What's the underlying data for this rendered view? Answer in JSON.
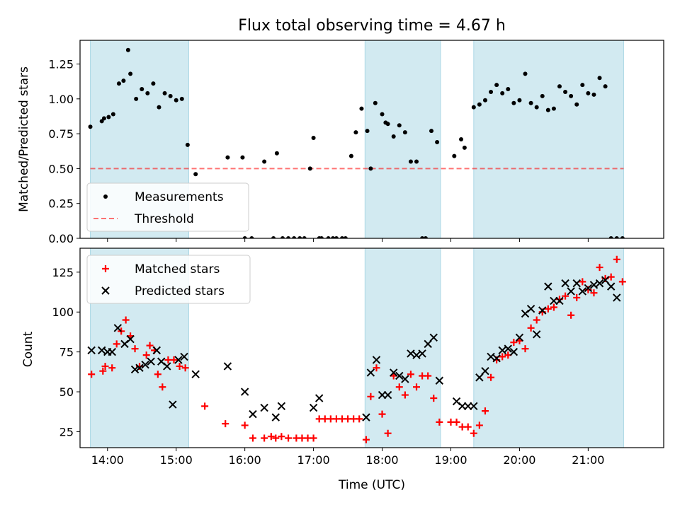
{
  "title": "Flux total observing time = 4.67 h",
  "colors": {
    "shade": "#add8e6",
    "measurement": "#000000",
    "threshold": "#ff0000",
    "matched": "#ff0000",
    "predicted": "#000000"
  },
  "chart_data": [
    {
      "type": "scatter",
      "ylabel": "Matched/Predicted stars",
      "ylim": [
        0,
        1.42
      ],
      "xlim": [
        "13:36",
        "22:06"
      ],
      "x_ticks": [
        "14:00",
        "15:00",
        "16:00",
        "17:00",
        "18:00",
        "19:00",
        "20:00",
        "21:00"
      ],
      "y_ticks": [
        "0.00",
        "0.25",
        "0.50",
        "0.75",
        "1.00",
        "1.25"
      ],
      "shaded_intervals": [
        [
          "13:45",
          "15:11"
        ],
        [
          "17:45",
          "18:51"
        ],
        [
          "19:20",
          "21:31"
        ]
      ],
      "threshold": 0.5,
      "legend": {
        "position": "lower-left",
        "entries": [
          "Measurements",
          "Threshold"
        ]
      },
      "series": [
        {
          "name": "Measurements",
          "x": [
            "13:45",
            "13:55",
            "13:57",
            "14:01",
            "14:05",
            "14:10",
            "14:14",
            "14:18",
            "14:20",
            "14:25",
            "14:30",
            "14:35",
            "14:40",
            "14:45",
            "14:50",
            "14:55",
            "15:00",
            "15:05",
            "15:10",
            "15:17",
            "15:45",
            "15:58",
            "16:00",
            "16:06",
            "16:17",
            "16:25",
            "16:28",
            "16:33",
            "16:38",
            "16:43",
            "16:48",
            "16:52",
            "16:57",
            "17:00",
            "17:05",
            "17:07",
            "17:13",
            "17:17",
            "17:20",
            "17:25",
            "17:28",
            "17:33",
            "17:37",
            "17:42",
            "17:47",
            "17:50",
            "17:54",
            "18:00",
            "18:03",
            "18:05",
            "18:10",
            "18:15",
            "18:20",
            "18:25",
            "18:30",
            "18:35",
            "18:38",
            "18:43",
            "18:48",
            "19:03",
            "19:09",
            "19:12",
            "19:20",
            "19:25",
            "19:30",
            "19:35",
            "19:40",
            "19:45",
            "19:50",
            "19:55",
            "20:00",
            "20:05",
            "20:10",
            "20:15",
            "20:20",
            "20:25",
            "20:30",
            "20:35",
            "20:40",
            "20:45",
            "20:50",
            "20:55",
            "21:00",
            "21:05",
            "21:10",
            "21:15",
            "21:20",
            "21:25",
            "21:30"
          ],
          "y": [
            0.8,
            0.84,
            0.86,
            0.87,
            0.89,
            1.11,
            1.13,
            1.35,
            1.18,
            1.0,
            1.07,
            1.04,
            1.11,
            0.94,
            1.04,
            1.02,
            0.99,
            1.0,
            0.67,
            0.46,
            0.58,
            0.58,
            0.0,
            0.0,
            0.55,
            0.0,
            0.61,
            0.0,
            0.0,
            0.0,
            0.0,
            0.0,
            0.5,
            0.72,
            0.0,
            0.0,
            0.0,
            0.0,
            0.0,
            0.0,
            0.0,
            0.59,
            0.76,
            0.93,
            0.77,
            0.5,
            0.97,
            0.89,
            0.83,
            0.82,
            0.73,
            0.81,
            0.76,
            0.55,
            0.55,
            0.0,
            0.0,
            0.77,
            0.69,
            0.59,
            0.71,
            0.65,
            0.94,
            0.96,
            0.99,
            1.05,
            1.1,
            1.04,
            1.07,
            0.97,
            0.99,
            1.18,
            0.97,
            0.94,
            1.02,
            0.92,
            0.93,
            1.09,
            1.05,
            1.02,
            0.96,
            1.1,
            1.04,
            1.03,
            1.15,
            1.09,
            0.0,
            0.0,
            0.0
          ]
        }
      ]
    },
    {
      "type": "scatter",
      "xlabel": "Time (UTC)",
      "ylabel": "Count",
      "ylim": [
        15,
        140
      ],
      "xlim": [
        "13:36",
        "22:06"
      ],
      "x_ticks": [
        "14:00",
        "15:00",
        "16:00",
        "17:00",
        "18:00",
        "19:00",
        "20:00",
        "21:00"
      ],
      "y_ticks": [
        "25",
        "50",
        "75",
        "100",
        "125"
      ],
      "shaded_intervals": [
        [
          "13:45",
          "15:11"
        ],
        [
          "17:45",
          "18:51"
        ],
        [
          "19:20",
          "21:31"
        ]
      ],
      "legend": {
        "position": "top-left",
        "entries": [
          "Matched stars",
          "Predicted stars"
        ]
      },
      "series": [
        {
          "name": "Matched stars",
          "x": [
            "13:46",
            "13:56",
            "13:58",
            "14:04",
            "14:08",
            "14:12",
            "14:16",
            "14:20",
            "14:24",
            "14:28",
            "14:34",
            "14:37",
            "14:41",
            "14:44",
            "14:48",
            "14:53",
            "14:58",
            "15:03",
            "15:08",
            "15:25",
            "15:43",
            "16:00",
            "16:07",
            "16:17",
            "16:23",
            "16:27",
            "16:32",
            "16:38",
            "16:45",
            "16:50",
            "16:55",
            "17:00",
            "17:05",
            "17:10",
            "17:15",
            "17:20",
            "17:25",
            "17:30",
            "17:35",
            "17:40",
            "17:46",
            "17:50",
            "17:55",
            "18:00",
            "18:05",
            "18:10",
            "18:15",
            "18:20",
            "18:25",
            "18:30",
            "18:35",
            "18:40",
            "18:45",
            "18:50",
            "19:00",
            "19:05",
            "19:10",
            "19:15",
            "19:20",
            "19:25",
            "19:30",
            "19:35",
            "19:40",
            "19:45",
            "19:50",
            "19:55",
            "20:00",
            "20:05",
            "20:10",
            "20:15",
            "20:20",
            "20:25",
            "20:30",
            "20:35",
            "20:40",
            "20:45",
            "20:50",
            "20:55",
            "21:00",
            "21:05",
            "21:10",
            "21:15",
            "21:20",
            "21:25",
            "21:30"
          ],
          "y": [
            61,
            63,
            66,
            65,
            80,
            88,
            95,
            85,
            77,
            66,
            73,
            79,
            76,
            61,
            53,
            70,
            70,
            66,
            65,
            41,
            30,
            29,
            21,
            21,
            22,
            21,
            22,
            21,
            21,
            21,
            21,
            21,
            33,
            33,
            33,
            33,
            33,
            33,
            33,
            33,
            20,
            47,
            65,
            36,
            24,
            60,
            53,
            48,
            61,
            53,
            60,
            60,
            46,
            31,
            31,
            31,
            28,
            28,
            24,
            29,
            38,
            59,
            70,
            72,
            73,
            81,
            82,
            77,
            90,
            95,
            100,
            102,
            103,
            108,
            110,
            98,
            109,
            119,
            114,
            112,
            128,
            121,
            122,
            133,
            119
          ]
        },
        {
          "name": "Predicted stars",
          "x": [
            "13:46",
            "13:55",
            "14:00",
            "14:04",
            "14:09",
            "14:15",
            "14:20",
            "14:24",
            "14:28",
            "14:33",
            "14:38",
            "14:43",
            "14:47",
            "14:52",
            "14:57",
            "15:02",
            "15:07",
            "15:17",
            "15:45",
            "16:00",
            "16:07",
            "16:17",
            "16:27",
            "16:32",
            "17:00",
            "17:05",
            "17:46",
            "17:50",
            "17:55",
            "18:00",
            "18:05",
            "18:10",
            "18:15",
            "18:20",
            "18:25",
            "18:30",
            "18:35",
            "18:40",
            "18:45",
            "18:50",
            "19:05",
            "19:10",
            "19:15",
            "19:20",
            "19:25",
            "19:30",
            "19:35",
            "19:40",
            "19:45",
            "19:50",
            "19:55",
            "20:00",
            "20:05",
            "20:10",
            "20:15",
            "20:20",
            "20:25",
            "20:30",
            "20:35",
            "20:40",
            "20:45",
            "20:50",
            "20:55",
            "21:00",
            "21:05",
            "21:10",
            "21:15",
            "21:20",
            "21:25"
          ],
          "y": [
            76,
            76,
            75,
            75,
            90,
            80,
            83,
            64,
            65,
            67,
            69,
            76,
            69,
            66,
            42,
            70,
            72,
            61,
            66,
            50,
            36,
            40,
            34,
            41,
            40,
            46,
            34,
            62,
            70,
            48,
            48,
            62,
            60,
            58,
            74,
            73,
            74,
            80,
            84,
            57,
            44,
            41,
            41,
            41,
            59,
            63,
            72,
            71,
            76,
            77,
            75,
            84,
            99,
            102,
            86,
            101,
            116,
            107,
            107,
            118,
            113,
            118,
            113,
            115,
            117,
            118,
            120,
            116,
            109
          ]
        }
      ]
    }
  ]
}
